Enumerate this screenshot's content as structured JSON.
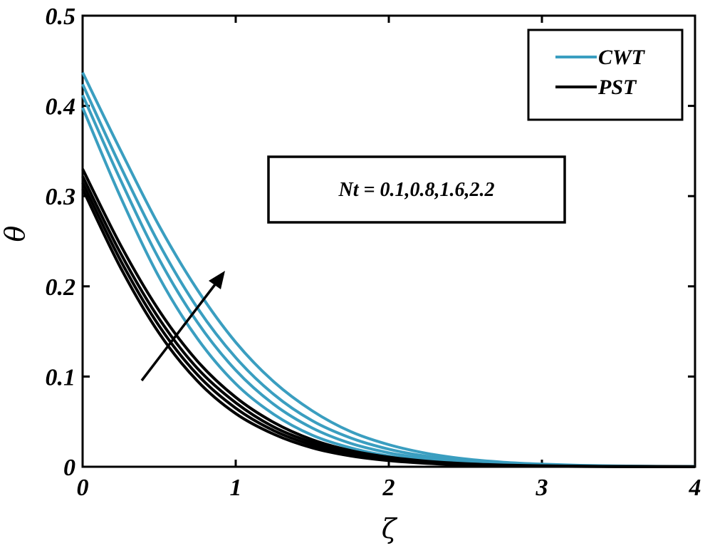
{
  "chart_data": {
    "type": "line",
    "xlabel": "ζ",
    "ylabel": "θ",
    "xlim": [
      0,
      4
    ],
    "ylim": [
      0,
      0.5
    ],
    "xticks": [
      0,
      1,
      2,
      3,
      4
    ],
    "xtick_labels": [
      "0",
      "1",
      "2",
      "3",
      "4"
    ],
    "yticks": [
      0,
      0.1,
      0.2,
      0.3,
      0.4,
      0.5
    ],
    "ytick_labels": [
      "0",
      "0.1",
      "0.2",
      "0.3",
      "0.4",
      "0.5"
    ],
    "grid": false,
    "legend": {
      "position": "top-right",
      "entries": [
        {
          "label": "CWT",
          "color": "#3a9ec0"
        },
        {
          "label": "PST",
          "color": "#000000"
        }
      ]
    },
    "annotation": {
      "text": "Nt = 0.1,0.8,1.6,2.2",
      "arrow_direction": "increasing"
    },
    "x": [
      0,
      0.25,
      0.5,
      0.75,
      1.0,
      1.25,
      1.5,
      1.75,
      2.0,
      2.25,
      2.5,
      2.75,
      3.0,
      3.25,
      3.5,
      3.75,
      4.0
    ],
    "series": [
      {
        "group": "CWT",
        "color": "#3a9ec0",
        "values": [
          0.398,
          0.298,
          0.21,
          0.142,
          0.092,
          0.058,
          0.035,
          0.021,
          0.012,
          0.007,
          0.004,
          0.0023,
          0.0013,
          0.0007,
          0.0004,
          0.0002,
          0.0001
        ]
      },
      {
        "group": "CWT",
        "color": "#3a9ec0",
        "values": [
          0.412,
          0.317,
          0.23,
          0.16,
          0.107,
          0.069,
          0.043,
          0.026,
          0.0155,
          0.009,
          0.0052,
          0.003,
          0.0017,
          0.001,
          0.0005,
          0.0003,
          0.0002
        ]
      },
      {
        "group": "CWT",
        "color": "#3a9ec0",
        "values": [
          0.424,
          0.332,
          0.247,
          0.176,
          0.121,
          0.08,
          0.051,
          0.032,
          0.0195,
          0.0115,
          0.0067,
          0.0039,
          0.0022,
          0.0012,
          0.0007,
          0.0004,
          0.0002
        ]
      },
      {
        "group": "CWT",
        "color": "#3a9ec0",
        "values": [
          0.437,
          0.35,
          0.267,
          0.196,
          0.138,
          0.094,
          0.062,
          0.039,
          0.0245,
          0.0148,
          0.0087,
          0.005,
          0.0029,
          0.0016,
          0.0009,
          0.0005,
          0.0003
        ]
      },
      {
        "group": "PST",
        "color": "#000000",
        "values": [
          0.308,
          0.22,
          0.148,
          0.095,
          0.059,
          0.036,
          0.021,
          0.012,
          0.0068,
          0.0038,
          0.0021,
          0.0011,
          0.0006,
          0.0003,
          0.0002,
          0.0001,
          0.0
        ]
      },
      {
        "group": "PST",
        "color": "#000000",
        "values": [
          0.315,
          0.228,
          0.156,
          0.102,
          0.065,
          0.04,
          0.024,
          0.014,
          0.008,
          0.0045,
          0.0025,
          0.0014,
          0.0007,
          0.0004,
          0.0002,
          0.0001,
          0.0
        ]
      },
      {
        "group": "PST",
        "color": "#000000",
        "values": [
          0.322,
          0.236,
          0.164,
          0.109,
          0.071,
          0.044,
          0.027,
          0.016,
          0.0093,
          0.0053,
          0.003,
          0.0016,
          0.0009,
          0.0005,
          0.0003,
          0.0001,
          0.0001
        ]
      },
      {
        "group": "PST",
        "color": "#000000",
        "values": [
          0.33,
          0.245,
          0.173,
          0.117,
          0.077,
          0.049,
          0.03,
          0.018,
          0.0107,
          0.0062,
          0.0035,
          0.0019,
          0.0011,
          0.0006,
          0.0003,
          0.0002,
          0.0001
        ]
      }
    ]
  }
}
